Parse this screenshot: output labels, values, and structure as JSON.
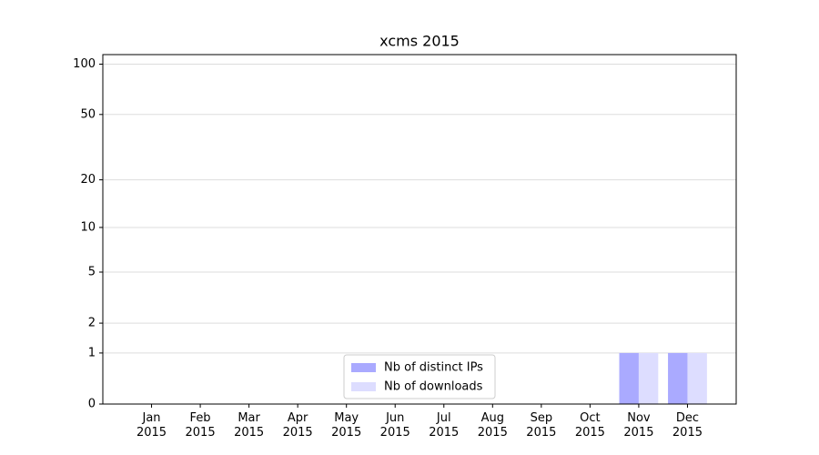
{
  "chart_data": {
    "type": "bar",
    "title": "xcms 2015",
    "categories": [
      "Jan\n2015",
      "Feb\n2015",
      "Mar\n2015",
      "Apr\n2015",
      "May\n2015",
      "Jun\n2015",
      "Jul\n2015",
      "Aug\n2015",
      "Sep\n2015",
      "Oct\n2015",
      "Nov\n2015",
      "Dec\n2015"
    ],
    "series": [
      {
        "name": "Nb of distinct IPs",
        "color": "#aaaaff",
        "values": [
          0,
          0,
          0,
          0,
          0,
          0,
          0,
          0,
          0,
          0,
          1,
          1
        ]
      },
      {
        "name": "Nb of downloads",
        "color": "#ddddff",
        "values": [
          0,
          0,
          0,
          0,
          0,
          0,
          0,
          0,
          0,
          0,
          1,
          1
        ]
      }
    ],
    "yscale": "log1p",
    "ylim": [
      0,
      114
    ],
    "yticks": [
      0,
      1,
      2,
      5,
      10,
      20,
      50,
      100
    ],
    "grid": true,
    "legend": "lower center"
  }
}
